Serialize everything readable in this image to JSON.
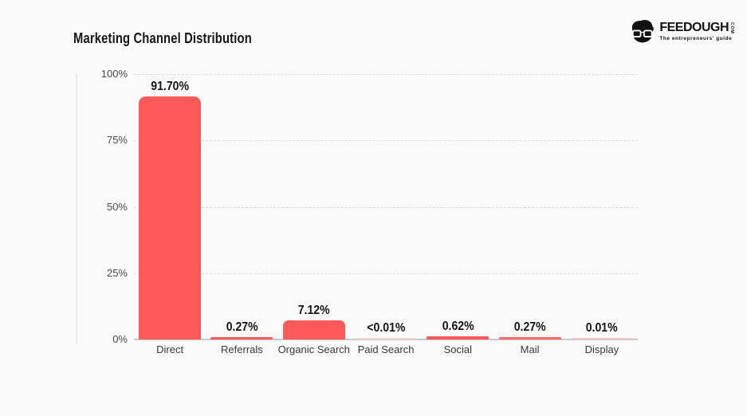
{
  "page": {
    "background": "#FAFAFA"
  },
  "header": {
    "title": "Marketing Channel Distribution",
    "logo": {
      "brand": "FEEDOUGH",
      "tld": "COM",
      "tagline": "The entrepreneurs' guide",
      "color": "#121212"
    }
  },
  "chart_data": {
    "type": "bar",
    "title": "Marketing Channel Distribution",
    "categories": [
      "Direct",
      "Referrals",
      "Organic Search",
      "Paid Search",
      "Social",
      "Mail",
      "Display"
    ],
    "values": [
      91.7,
      0.27,
      7.12,
      0.005,
      0.62,
      0.27,
      0.01
    ],
    "value_labels": [
      "91.70%",
      "0.27%",
      "7.12%",
      "<0.01%",
      "0.62%",
      "0.27%",
      "0.01%"
    ],
    "bar_colors": [
      "#FF5A5A",
      "#FF5A5A",
      "#FF5A5A",
      "#F4D4D4",
      "#FF5A5A",
      "#FB6B6B",
      "#F6C6C6"
    ],
    "xlabel": "",
    "ylabel": "",
    "ylim": [
      0,
      100
    ],
    "ytick_values": [
      100,
      75,
      50,
      25,
      0
    ],
    "ytick_labels": [
      "100%",
      "75%",
      "50%",
      "25%",
      "0%"
    ],
    "grid": "horizontal-dashed",
    "legend": "none",
    "accent_color": "#FF5A5A",
    "background": "#FAFAFA"
  }
}
